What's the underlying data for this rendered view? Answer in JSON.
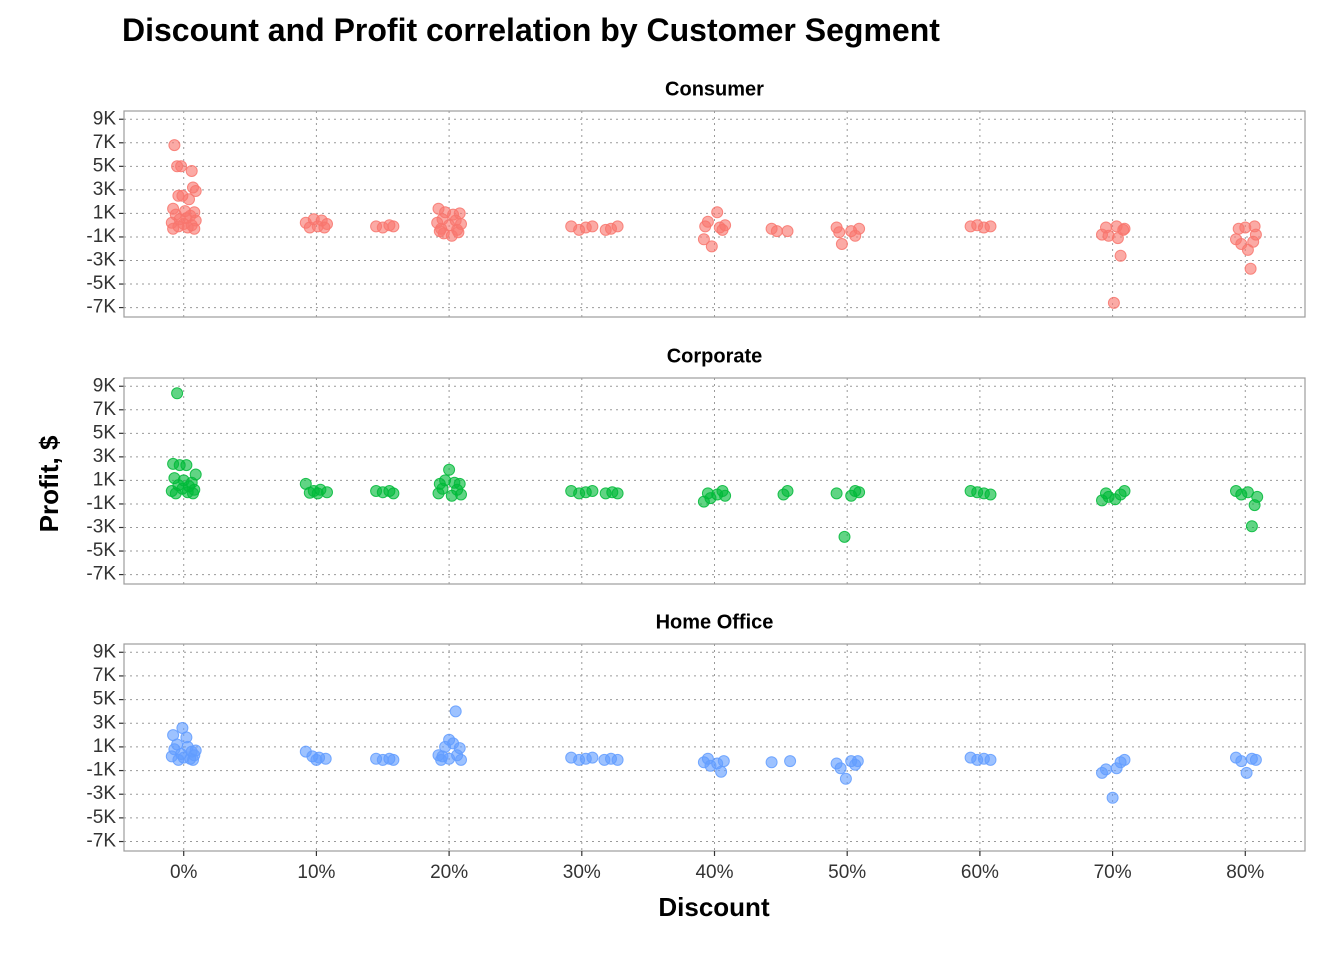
{
  "chart_data": {
    "type": "scatter",
    "title": "Discount and Profit correlation by Customer Segment",
    "xlabel": "Discount",
    "ylabel": "Profit, $",
    "xlim": [
      -0.045,
      0.845
    ],
    "ylim": [
      -7800,
      9700
    ],
    "x_ticks": [
      0,
      0.1,
      0.2,
      0.3,
      0.4,
      0.5,
      0.6,
      0.7,
      0.8
    ],
    "x_tick_labels": [
      "0%",
      "10%",
      "20%",
      "30%",
      "40%",
      "50%",
      "60%",
      "70%",
      "80%"
    ],
    "y_ticks": [
      9000,
      7000,
      5000,
      3000,
      1000,
      -1000,
      -3000,
      -5000,
      -7000
    ],
    "y_tick_labels": [
      "9K",
      "7K",
      "5K",
      "3K",
      "1K",
      "-1K",
      "-3K",
      "-5K",
      "-7K"
    ],
    "grid": true,
    "facets": [
      {
        "name": "Consumer",
        "color": "#F8766D",
        "points": [
          [
            -0.007,
            6800
          ],
          [
            -0.005,
            5000
          ],
          [
            -0.002,
            5000
          ],
          [
            0.006,
            4600
          ],
          [
            0.007,
            3200
          ],
          [
            0.009,
            2900
          ],
          [
            -0.004,
            2500
          ],
          [
            -0.001,
            2500
          ],
          [
            0.004,
            2200
          ],
          [
            -0.008,
            1400
          ],
          [
            0.001,
            1200
          ],
          [
            0.008,
            1100
          ],
          [
            -0.006,
            900
          ],
          [
            0.005,
            800
          ],
          [
            0.002,
            600
          ],
          [
            -0.003,
            500
          ],
          [
            0.009,
            400
          ],
          [
            -0.009,
            200
          ],
          [
            0.0,
            100
          ],
          [
            0.006,
            0
          ],
          [
            -0.004,
            -100
          ],
          [
            0.003,
            -200
          ],
          [
            -0.008,
            -300
          ],
          [
            0.008,
            -300
          ],
          [
            0.092,
            200
          ],
          [
            0.098,
            500
          ],
          [
            0.104,
            400
          ],
          [
            0.108,
            100
          ],
          [
            0.101,
            -100
          ],
          [
            0.095,
            -200
          ],
          [
            0.106,
            -200
          ],
          [
            0.145,
            -100
          ],
          [
            0.15,
            -200
          ],
          [
            0.155,
            0
          ],
          [
            0.158,
            -100
          ],
          [
            0.192,
            1400
          ],
          [
            0.197,
            1100
          ],
          [
            0.203,
            900
          ],
          [
            0.208,
            1000
          ],
          [
            0.195,
            500
          ],
          [
            0.205,
            400
          ],
          [
            0.191,
            200
          ],
          [
            0.209,
            100
          ],
          [
            0.2,
            0
          ],
          [
            0.194,
            -300
          ],
          [
            0.206,
            -400
          ],
          [
            0.196,
            -700
          ],
          [
            0.202,
            -900
          ],
          [
            0.193,
            -500
          ],
          [
            0.207,
            -600
          ],
          [
            0.292,
            -100
          ],
          [
            0.298,
            -400
          ],
          [
            0.303,
            -200
          ],
          [
            0.308,
            -100
          ],
          [
            0.318,
            -400
          ],
          [
            0.322,
            -300
          ],
          [
            0.327,
            -100
          ],
          [
            0.392,
            -1200
          ],
          [
            0.398,
            -1800
          ],
          [
            0.402,
            1100
          ],
          [
            0.406,
            -400
          ],
          [
            0.395,
            300
          ],
          [
            0.404,
            -200
          ],
          [
            0.393,
            -100
          ],
          [
            0.408,
            0
          ],
          [
            0.443,
            -300
          ],
          [
            0.447,
            -500
          ],
          [
            0.455,
            -500
          ],
          [
            0.492,
            -200
          ],
          [
            0.496,
            -1600
          ],
          [
            0.503,
            -500
          ],
          [
            0.506,
            -900
          ],
          [
            0.509,
            -300
          ],
          [
            0.494,
            -600
          ],
          [
            0.593,
            -100
          ],
          [
            0.598,
            0
          ],
          [
            0.603,
            -200
          ],
          [
            0.608,
            -100
          ],
          [
            0.692,
            -800
          ],
          [
            0.697,
            -900
          ],
          [
            0.701,
            -6600
          ],
          [
            0.704,
            -1100
          ],
          [
            0.706,
            -2600
          ],
          [
            0.708,
            -400
          ],
          [
            0.695,
            -200
          ],
          [
            0.703,
            -100
          ],
          [
            0.709,
            -300
          ],
          [
            0.793,
            -1200
          ],
          [
            0.797,
            -1600
          ],
          [
            0.802,
            -2100
          ],
          [
            0.804,
            -3700
          ],
          [
            0.806,
            -1400
          ],
          [
            0.808,
            -800
          ],
          [
            0.795,
            -300
          ],
          [
            0.8,
            -200
          ],
          [
            0.807,
            -100
          ]
        ]
      },
      {
        "name": "Corporate",
        "color": "#00BA38",
        "points": [
          [
            -0.005,
            8400
          ],
          [
            -0.008,
            2400
          ],
          [
            -0.003,
            2300
          ],
          [
            0.002,
            2300
          ],
          [
            0.009,
            1500
          ],
          [
            -0.007,
            1200
          ],
          [
            0.0,
            1000
          ],
          [
            0.006,
            800
          ],
          [
            -0.004,
            600
          ],
          [
            0.004,
            500
          ],
          [
            -0.001,
            300
          ],
          [
            0.008,
            200
          ],
          [
            -0.009,
            100
          ],
          [
            0.003,
            0
          ],
          [
            -0.006,
            -100
          ],
          [
            0.007,
            -100
          ],
          [
            0.092,
            700
          ],
          [
            0.098,
            100
          ],
          [
            0.103,
            200
          ],
          [
            0.108,
            0
          ],
          [
            0.101,
            -100
          ],
          [
            0.095,
            -50
          ],
          [
            0.145,
            100
          ],
          [
            0.15,
            0
          ],
          [
            0.155,
            100
          ],
          [
            0.158,
            -100
          ],
          [
            0.193,
            700
          ],
          [
            0.197,
            1000
          ],
          [
            0.2,
            1900
          ],
          [
            0.204,
            800
          ],
          [
            0.208,
            700
          ],
          [
            0.195,
            300
          ],
          [
            0.206,
            200
          ],
          [
            0.192,
            -100
          ],
          [
            0.202,
            -300
          ],
          [
            0.209,
            -200
          ],
          [
            0.292,
            100
          ],
          [
            0.298,
            -100
          ],
          [
            0.303,
            0
          ],
          [
            0.308,
            100
          ],
          [
            0.318,
            -100
          ],
          [
            0.323,
            0
          ],
          [
            0.327,
            -100
          ],
          [
            0.392,
            -800
          ],
          [
            0.397,
            -500
          ],
          [
            0.402,
            -200
          ],
          [
            0.406,
            100
          ],
          [
            0.395,
            -100
          ],
          [
            0.408,
            -300
          ],
          [
            0.452,
            -200
          ],
          [
            0.455,
            100
          ],
          [
            0.492,
            -100
          ],
          [
            0.498,
            -3800
          ],
          [
            0.503,
            -300
          ],
          [
            0.506,
            100
          ],
          [
            0.509,
            0
          ],
          [
            0.593,
            100
          ],
          [
            0.598,
            0
          ],
          [
            0.603,
            -100
          ],
          [
            0.608,
            -200
          ],
          [
            0.692,
            -700
          ],
          [
            0.697,
            -400
          ],
          [
            0.702,
            -600
          ],
          [
            0.706,
            -200
          ],
          [
            0.709,
            100
          ],
          [
            0.695,
            -100
          ],
          [
            0.793,
            100
          ],
          [
            0.797,
            -200
          ],
          [
            0.802,
            0
          ],
          [
            0.805,
            -2900
          ],
          [
            0.807,
            -1100
          ],
          [
            0.809,
            -400
          ]
        ]
      },
      {
        "name": "Home Office",
        "color": "#619CFF",
        "points": [
          [
            -0.008,
            2000
          ],
          [
            -0.001,
            2600
          ],
          [
            0.002,
            1800
          ],
          [
            -0.005,
            1200
          ],
          [
            0.003,
            1000
          ],
          [
            0.009,
            700
          ],
          [
            -0.007,
            800
          ],
          [
            0.006,
            600
          ],
          [
            -0.002,
            400
          ],
          [
            0.008,
            300
          ],
          [
            -0.009,
            200
          ],
          [
            0.0,
            100
          ],
          [
            0.005,
            0
          ],
          [
            -0.004,
            -100
          ],
          [
            0.007,
            -100
          ],
          [
            0.092,
            600
          ],
          [
            0.097,
            200
          ],
          [
            0.102,
            100
          ],
          [
            0.107,
            0
          ],
          [
            0.1,
            -100
          ],
          [
            0.145,
            0
          ],
          [
            0.15,
            -100
          ],
          [
            0.155,
            0
          ],
          [
            0.158,
            -100
          ],
          [
            0.192,
            300
          ],
          [
            0.197,
            1000
          ],
          [
            0.2,
            1600
          ],
          [
            0.203,
            1300
          ],
          [
            0.205,
            4000
          ],
          [
            0.208,
            900
          ],
          [
            0.195,
            200
          ],
          [
            0.206,
            300
          ],
          [
            0.2,
            0
          ],
          [
            0.194,
            -100
          ],
          [
            0.209,
            -100
          ],
          [
            0.292,
            100
          ],
          [
            0.298,
            -100
          ],
          [
            0.303,
            0
          ],
          [
            0.308,
            100
          ],
          [
            0.317,
            -100
          ],
          [
            0.322,
            0
          ],
          [
            0.327,
            -100
          ],
          [
            0.392,
            -300
          ],
          [
            0.397,
            -600
          ],
          [
            0.402,
            -400
          ],
          [
            0.405,
            -1100
          ],
          [
            0.407,
            -200
          ],
          [
            0.395,
            0
          ],
          [
            0.443,
            -300
          ],
          [
            0.457,
            -200
          ],
          [
            0.492,
            -400
          ],
          [
            0.495,
            -800
          ],
          [
            0.499,
            -1700
          ],
          [
            0.503,
            -200
          ],
          [
            0.506,
            -500
          ],
          [
            0.508,
            -200
          ],
          [
            0.593,
            100
          ],
          [
            0.598,
            -100
          ],
          [
            0.603,
            0
          ],
          [
            0.608,
            -100
          ],
          [
            0.692,
            -1200
          ],
          [
            0.695,
            -900
          ],
          [
            0.7,
            -3300
          ],
          [
            0.703,
            -800
          ],
          [
            0.706,
            -300
          ],
          [
            0.709,
            -100
          ],
          [
            0.793,
            100
          ],
          [
            0.797,
            -200
          ],
          [
            0.801,
            -1200
          ],
          [
            0.805,
            0
          ],
          [
            0.808,
            -100
          ]
        ]
      }
    ]
  }
}
